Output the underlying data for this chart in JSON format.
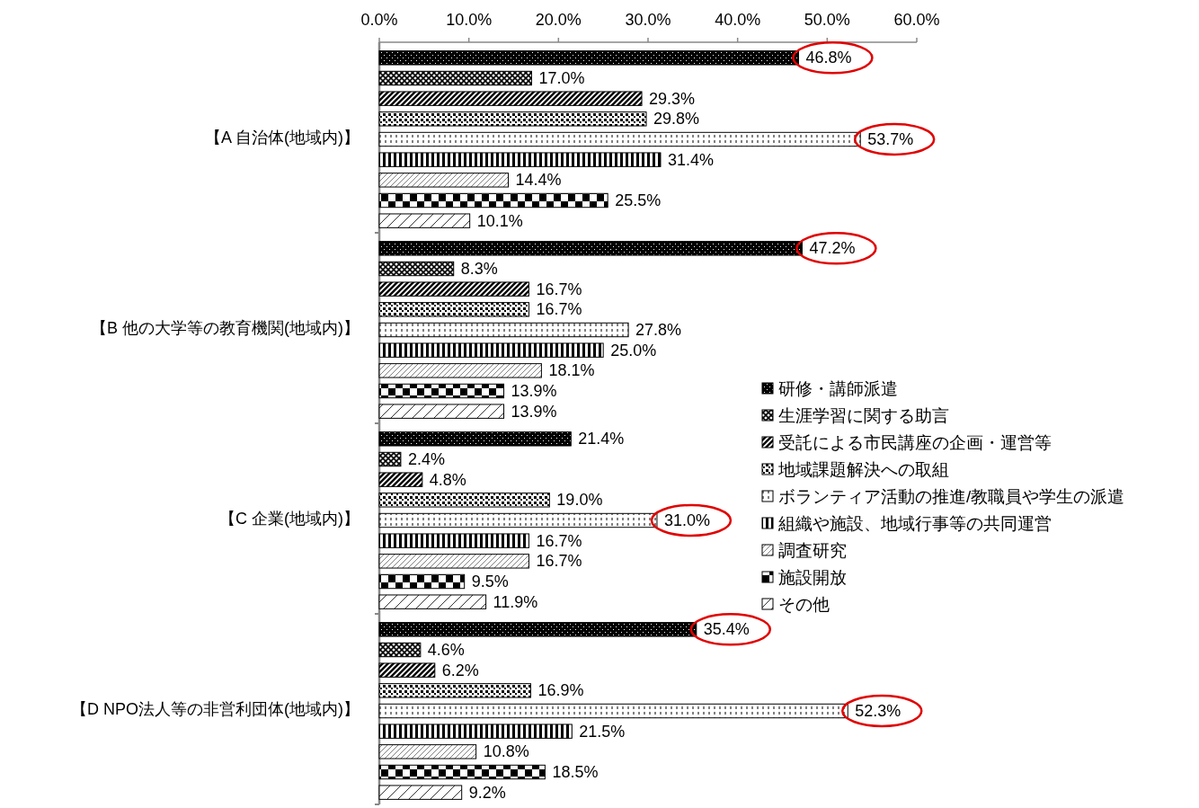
{
  "chart_data": {
    "type": "bar",
    "orientation": "horizontal",
    "legend": "right",
    "grid": false,
    "categories": [
      "【A 自治体(地域内)】",
      "【B 他の大学等の教育機関(地域内)】",
      "【C 企業(地域内)】",
      "【D NPO法人等の非営利団体(地域内)】"
    ],
    "xlim": [
      0,
      60
    ],
    "xticks": [
      {
        "value": 0,
        "label": "0.0%"
      },
      {
        "value": 10,
        "label": "10.0%"
      },
      {
        "value": 20,
        "label": "20.0%"
      },
      {
        "value": 30,
        "label": "30.0%"
      },
      {
        "value": 40,
        "label": "40.0%"
      },
      {
        "value": 50,
        "label": "50.0%"
      },
      {
        "value": 60,
        "label": "60.0%"
      }
    ],
    "series": [
      {
        "name": "研修・講師派遣",
        "color": "#000000",
        "values": [
          46.8,
          47.2,
          21.4,
          35.4
        ],
        "value_labels": [
          "46.8%",
          "47.2%",
          "21.4%",
          "35.4%"
        ]
      },
      {
        "name": "生涯学習に関する助言",
        "color": "#000000",
        "values": [
          17.0,
          8.3,
          2.4,
          4.6
        ],
        "value_labels": [
          "17.0%",
          "8.3%",
          "2.4%",
          "4.6%"
        ]
      },
      {
        "name": "受託による市民講座の企画・運営等",
        "color": "#000000",
        "values": [
          29.3,
          16.7,
          4.8,
          6.2
        ],
        "value_labels": [
          "29.3%",
          "16.7%",
          "4.8%",
          "6.2%"
        ]
      },
      {
        "name": "地域課題解決への取組",
        "color": "#000000",
        "values": [
          29.8,
          16.7,
          19.0,
          16.9
        ],
        "value_labels": [
          "29.8%",
          "16.7%",
          "19.0%",
          "16.9%"
        ]
      },
      {
        "name": "ボランティア活動の推進/教職員や学生の派遣",
        "color": "#000000",
        "values": [
          53.7,
          27.8,
          31.0,
          52.3
        ],
        "value_labels": [
          "53.7%",
          "27.8%",
          "31.0%",
          "52.3%"
        ]
      },
      {
        "name": "組織や施設、地域行事等の共同運営",
        "color": "#000000",
        "values": [
          31.4,
          25.0,
          16.7,
          21.5
        ],
        "value_labels": [
          "31.4%",
          "25.0%",
          "16.7%",
          "21.5%"
        ]
      },
      {
        "name": "調査研究",
        "color": "#000000",
        "values": [
          14.4,
          18.1,
          16.7,
          10.8
        ],
        "value_labels": [
          "14.4%",
          "18.1%",
          "16.7%",
          "10.8%"
        ]
      },
      {
        "name": "施設開放",
        "color": "#000000",
        "values": [
          25.5,
          13.9,
          9.5,
          18.5
        ],
        "value_labels": [
          "25.5%",
          "13.9%",
          "9.5%",
          "18.5%"
        ]
      },
      {
        "name": "その他",
        "color": "#000000",
        "values": [
          10.1,
          13.9,
          11.9,
          9.2
        ],
        "value_labels": [
          "10.1%",
          "13.9%",
          "11.9%",
          "9.2%"
        ]
      }
    ]
  }
}
